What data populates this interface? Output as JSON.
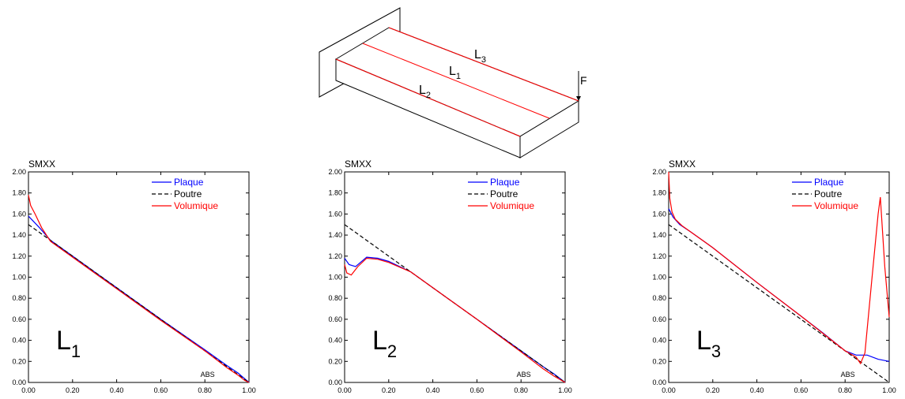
{
  "diagram": {
    "line_labels": [
      {
        "base": "L",
        "sub": "3"
      },
      {
        "base": "L",
        "sub": "1"
      },
      {
        "base": "L",
        "sub": "2"
      }
    ],
    "force_label": "F"
  },
  "colors": {
    "plaque": "#0000ff",
    "poutre": "#000000",
    "volumique": "#ff0000"
  },
  "chart_data": [
    {
      "type": "line",
      "title": "SMXX",
      "xlabel": "ABS",
      "xlim": [
        0,
        1
      ],
      "ylim": [
        0,
        2
      ],
      "x_ticks": [
        "0.00",
        "0.20",
        "0.40",
        "0.60",
        "0.80",
        "1.00"
      ],
      "y_ticks": [
        "0.00",
        "0.20",
        "0.40",
        "0.60",
        "0.80",
        "1.00",
        "1.20",
        "1.40",
        "1.60",
        "1.80",
        "2.00"
      ],
      "big_label": {
        "base": "L",
        "sub": "1"
      },
      "series": [
        {
          "name": "Plaque",
          "style": "solid",
          "color": "#0000ff",
          "x": [
            0,
            0.05,
            0.1,
            0.2,
            0.4,
            0.6,
            0.8,
            0.9,
            0.95,
            1.0
          ],
          "y": [
            1.58,
            1.47,
            1.35,
            1.2,
            0.9,
            0.6,
            0.31,
            0.16,
            0.09,
            0.0
          ]
        },
        {
          "name": "Poutre",
          "style": "dashed",
          "color": "#000000",
          "x": [
            0,
            1
          ],
          "y": [
            1.5,
            0.0
          ]
        },
        {
          "name": "Volumique",
          "style": "solid",
          "color": "#ff0000",
          "x": [
            0,
            0.01,
            0.03,
            0.06,
            0.1,
            0.2,
            0.4,
            0.6,
            0.8,
            0.9,
            0.95,
            0.98,
            1.0
          ],
          "y": [
            1.78,
            1.68,
            1.6,
            1.47,
            1.34,
            1.19,
            0.89,
            0.59,
            0.3,
            0.14,
            0.07,
            0.02,
            0.0
          ]
        }
      ]
    },
    {
      "type": "line",
      "title": "SMXX",
      "xlabel": "ABS",
      "xlim": [
        0,
        1
      ],
      "ylim": [
        0,
        2
      ],
      "x_ticks": [
        "0.00",
        "0.20",
        "0.40",
        "0.60",
        "0.80",
        "1.00"
      ],
      "y_ticks": [
        "0.00",
        "0.20",
        "0.40",
        "0.60",
        "0.80",
        "1.00",
        "1.20",
        "1.40",
        "1.60",
        "1.80",
        "2.00"
      ],
      "big_label": {
        "base": "L",
        "sub": "2"
      },
      "series": [
        {
          "name": "Plaque",
          "style": "solid",
          "color": "#0000ff",
          "x": [
            0,
            0.02,
            0.05,
            0.1,
            0.15,
            0.2,
            0.3,
            0.4,
            0.6,
            0.8,
            0.9,
            0.95,
            1.0
          ],
          "y": [
            1.18,
            1.12,
            1.1,
            1.19,
            1.18,
            1.15,
            1.05,
            0.9,
            0.6,
            0.3,
            0.15,
            0.08,
            0.0
          ]
        },
        {
          "name": "Poutre",
          "style": "dashed",
          "color": "#000000",
          "x": [
            0,
            1
          ],
          "y": [
            1.5,
            0.0
          ]
        },
        {
          "name": "Volumique",
          "style": "solid",
          "color": "#ff0000",
          "x": [
            0,
            0.01,
            0.03,
            0.06,
            0.1,
            0.15,
            0.2,
            0.3,
            0.4,
            0.6,
            0.8,
            0.9,
            0.95,
            1.0
          ],
          "y": [
            1.12,
            1.04,
            1.02,
            1.1,
            1.18,
            1.17,
            1.14,
            1.05,
            0.9,
            0.6,
            0.29,
            0.13,
            0.06,
            0.0
          ]
        }
      ]
    },
    {
      "type": "line",
      "title": "SMXX",
      "xlabel": "ABS",
      "xlim": [
        0,
        1
      ],
      "ylim": [
        0,
        2
      ],
      "x_ticks": [
        "0.00",
        "0.20",
        "0.40",
        "0.60",
        "0.80",
        "1.00"
      ],
      "y_ticks": [
        "0.00",
        "0.20",
        "0.40",
        "0.60",
        "0.80",
        "1.00",
        "1.20",
        "1.40",
        "1.60",
        "1.80",
        "2.00"
      ],
      "big_label": {
        "base": "L",
        "sub": "3"
      },
      "series": [
        {
          "name": "Plaque",
          "style": "solid",
          "color": "#0000ff",
          "x": [
            0,
            0.02,
            0.05,
            0.1,
            0.2,
            0.4,
            0.6,
            0.7,
            0.8,
            0.85,
            0.9,
            0.95,
            1.0
          ],
          "y": [
            1.65,
            1.57,
            1.5,
            1.43,
            1.28,
            0.95,
            0.63,
            0.47,
            0.3,
            0.26,
            0.26,
            0.22,
            0.2
          ]
        },
        {
          "name": "Poutre",
          "style": "dashed",
          "color": "#000000",
          "x": [
            0,
            1
          ],
          "y": [
            1.5,
            0.0
          ]
        },
        {
          "name": "Volumique",
          "style": "solid",
          "color": "#ff0000",
          "x": [
            0,
            0.005,
            0.015,
            0.03,
            0.06,
            0.1,
            0.2,
            0.4,
            0.6,
            0.8,
            0.85,
            0.87,
            0.89,
            0.92,
            0.95,
            0.96,
            0.98,
            1.0
          ],
          "y": [
            2.0,
            1.75,
            1.62,
            1.55,
            1.49,
            1.43,
            1.28,
            0.95,
            0.63,
            0.3,
            0.24,
            0.18,
            0.28,
            0.95,
            1.6,
            1.76,
            1.1,
            0.62
          ]
        }
      ]
    }
  ]
}
